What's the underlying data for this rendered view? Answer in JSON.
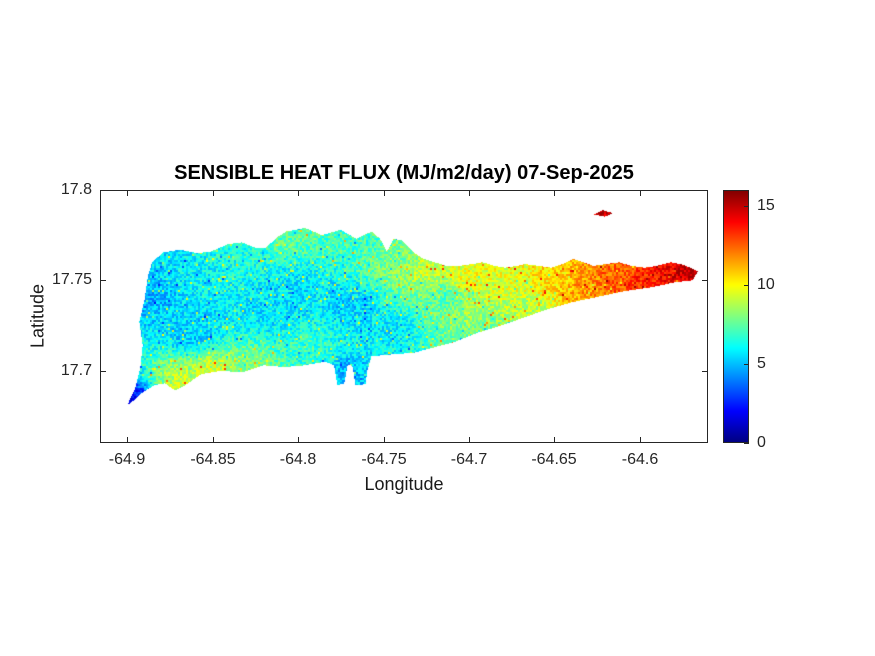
{
  "figure": {
    "background": "#ffffff"
  },
  "chart_data": {
    "type": "heatmap",
    "title": "SENSIBLE HEAT FLUX (MJ/m2/day) 07-Sep-2025",
    "date_shown": "07-Sep-2025",
    "units": "MJ/m2/day",
    "xlabel": "Longitude",
    "ylabel": "Latitude",
    "xlim": [
      -64.916,
      -64.56
    ],
    "ylim": [
      17.66,
      17.8
    ],
    "grid": false,
    "x_ticks": [
      -64.9,
      -64.85,
      -64.8,
      -64.75,
      -64.7,
      -64.65,
      -64.6
    ],
    "x_tick_labels": [
      "-64.9",
      "-64.85",
      "-64.8",
      "-64.75",
      "-64.7",
      "-64.65",
      "-64.6"
    ],
    "y_ticks": [
      17.7,
      17.75,
      17.8
    ],
    "y_tick_labels": [
      "17.7",
      "17.75",
      "17.8"
    ],
    "colorbar": {
      "min": 0,
      "max": 16,
      "ticks": [
        0,
        5,
        10,
        15
      ],
      "tick_labels": [
        "0",
        "5",
        "10",
        "15"
      ],
      "colormap": "jet",
      "position": "right"
    },
    "colormap_stops": [
      {
        "t": 0.0,
        "color": "#000080"
      },
      {
        "t": 0.125,
        "color": "#0000FF"
      },
      {
        "t": 0.375,
        "color": "#00FFFF"
      },
      {
        "t": 0.625,
        "color": "#FFFF00"
      },
      {
        "t": 0.875,
        "color": "#FF0000"
      },
      {
        "t": 1.0,
        "color": "#800000"
      }
    ],
    "noise_amplitude": 1.25,
    "island_outline": [
      [
        -64.9,
        17.681
      ],
      [
        -64.8955,
        17.69
      ],
      [
        -64.8925,
        17.701
      ],
      [
        -64.891,
        17.714
      ],
      [
        -64.893,
        17.727
      ],
      [
        -64.89,
        17.739
      ],
      [
        -64.888,
        17.752
      ],
      [
        -64.8855,
        17.76
      ],
      [
        -64.879,
        17.7655
      ],
      [
        -64.869,
        17.767
      ],
      [
        -64.859,
        17.765
      ],
      [
        -64.851,
        17.766
      ],
      [
        -64.841,
        17.77
      ],
      [
        -64.833,
        17.771
      ],
      [
        -64.825,
        17.768
      ],
      [
        -64.819,
        17.768
      ],
      [
        -64.812,
        17.774
      ],
      [
        -64.807,
        17.777
      ],
      [
        -64.796,
        17.779
      ],
      [
        -64.786,
        17.775
      ],
      [
        -64.775,
        17.778
      ],
      [
        -64.766,
        17.773
      ],
      [
        -64.757,
        17.777
      ],
      [
        -64.752,
        17.773
      ],
      [
        -64.748,
        17.766
      ],
      [
        -64.744,
        17.773
      ],
      [
        -64.739,
        17.772
      ],
      [
        -64.733,
        17.766
      ],
      [
        -64.727,
        17.762
      ],
      [
        -64.72,
        17.76
      ],
      [
        -64.713,
        17.758
      ],
      [
        -64.706,
        17.758
      ],
      [
        -64.698,
        17.759
      ],
      [
        -64.692,
        17.76
      ],
      [
        -64.685,
        17.758
      ],
      [
        -64.679,
        17.757
      ],
      [
        -64.672,
        17.758
      ],
      [
        -64.667,
        17.759
      ],
      [
        -64.659,
        17.758
      ],
      [
        -64.652,
        17.757
      ],
      [
        -64.645,
        17.759
      ],
      [
        -64.639,
        17.762
      ],
      [
        -64.633,
        17.76
      ],
      [
        -64.627,
        17.758
      ],
      [
        -64.62,
        17.759
      ],
      [
        -64.612,
        17.76
      ],
      [
        -64.605,
        17.758
      ],
      [
        -64.597,
        17.757
      ],
      [
        -64.59,
        17.758
      ],
      [
        -64.582,
        17.76
      ],
      [
        -64.576,
        17.759
      ],
      [
        -64.57,
        17.757
      ],
      [
        -64.566,
        17.755
      ],
      [
        -64.569,
        17.75
      ],
      [
        -64.579,
        17.749
      ],
      [
        -64.594,
        17.746
      ],
      [
        -64.609,
        17.744
      ],
      [
        -64.624,
        17.741
      ],
      [
        -64.639,
        17.738
      ],
      [
        -64.654,
        17.734
      ],
      [
        -64.669,
        17.729
      ],
      [
        -64.681,
        17.725
      ],
      [
        -64.695,
        17.721
      ],
      [
        -64.708,
        17.716
      ],
      [
        -64.72,
        17.713
      ],
      [
        -64.732,
        17.71
      ],
      [
        -64.745,
        17.709
      ],
      [
        -64.757,
        17.708
      ],
      [
        -64.7595,
        17.7
      ],
      [
        -64.7605,
        17.6925
      ],
      [
        -64.7665,
        17.692
      ],
      [
        -64.768,
        17.702
      ],
      [
        -64.7695,
        17.7035
      ],
      [
        -64.771,
        17.703
      ],
      [
        -64.773,
        17.693
      ],
      [
        -64.777,
        17.692
      ],
      [
        -64.779,
        17.703
      ],
      [
        -64.784,
        17.705
      ],
      [
        -64.796,
        17.703
      ],
      [
        -64.808,
        17.702
      ],
      [
        -64.82,
        17.703
      ],
      [
        -64.833,
        17.699
      ],
      [
        -64.845,
        17.7
      ],
      [
        -64.857,
        17.698
      ],
      [
        -64.866,
        17.692
      ],
      [
        -64.872,
        17.689
      ],
      [
        -64.878,
        17.693
      ],
      [
        -64.884,
        17.692
      ],
      [
        -64.891,
        17.688
      ],
      [
        -64.897,
        17.683
      ]
    ],
    "islets": [
      [
        [
          -64.627,
          17.7865
        ],
        [
          -64.6215,
          17.7888
        ],
        [
          -64.6155,
          17.7872
        ],
        [
          -64.6205,
          17.7852
        ]
      ]
    ],
    "value_control_points": [
      [
        -64.899,
        17.682,
        2.0
      ],
      [
        -64.886,
        17.742,
        4.8
      ],
      [
        -64.884,
        17.758,
        5.6
      ],
      [
        -64.868,
        17.694,
        9.0
      ],
      [
        -64.85,
        17.698,
        9.5
      ],
      [
        -64.828,
        17.7,
        8.0
      ],
      [
        -64.862,
        17.72,
        5.2
      ],
      [
        -64.858,
        17.752,
        6.0
      ],
      [
        -64.832,
        17.764,
        6.4
      ],
      [
        -64.806,
        17.774,
        7.4
      ],
      [
        -64.82,
        17.732,
        5.6
      ],
      [
        -64.8,
        17.745,
        5.6
      ],
      [
        -64.79,
        17.712,
        6.8
      ],
      [
        -64.77,
        17.7,
        5.0
      ],
      [
        -64.77,
        17.736,
        5.3
      ],
      [
        -64.76,
        17.773,
        7.0
      ],
      [
        -64.745,
        17.722,
        5.8
      ],
      [
        -64.738,
        17.76,
        8.0
      ],
      [
        -64.725,
        17.757,
        9.2
      ],
      [
        -64.712,
        17.74,
        7.2
      ],
      [
        -64.7,
        17.752,
        9.8
      ],
      [
        -64.7,
        17.735,
        8.6
      ],
      [
        -64.69,
        17.718,
        7.6
      ],
      [
        -64.676,
        17.75,
        9.6
      ],
      [
        -64.665,
        17.735,
        8.8
      ],
      [
        -64.648,
        17.752,
        10.6
      ],
      [
        -64.632,
        17.746,
        11.6
      ],
      [
        -64.615,
        17.752,
        12.4
      ],
      [
        -64.598,
        17.748,
        13.4
      ],
      [
        -64.58,
        17.752,
        14.3
      ],
      [
        -64.5665,
        17.754,
        15.4
      ],
      [
        -64.6215,
        17.7872,
        15.0
      ]
    ]
  }
}
